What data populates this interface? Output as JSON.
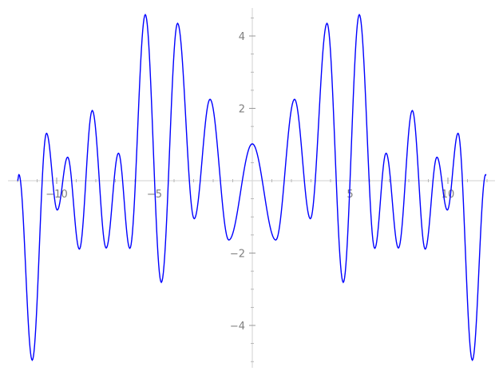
{
  "chart_data": {
    "type": "line",
    "title": "",
    "xlabel": "",
    "ylabel": "",
    "xlim": [
      -12,
      12
    ],
    "ylim": [
      -5.13,
      4.77
    ],
    "grid": false,
    "line_color": "#0000ff",
    "axis_color": "#d9d9d9",
    "tick_label_color": "#7f7f7f",
    "x_ticks": [
      {
        "value": -10,
        "label": "−10"
      },
      {
        "value": -5,
        "label": "−5"
      },
      {
        "value": 5,
        "label": "5"
      },
      {
        "value": 10,
        "label": "10"
      }
    ],
    "y_ticks": [
      {
        "value": -4,
        "label": "−4"
      },
      {
        "value": -2,
        "label": "−2"
      },
      {
        "value": 2,
        "label": "2"
      },
      {
        "value": 4,
        "label": "4"
      }
    ],
    "x_minor_step": 1,
    "y_minor_step": 0.5,
    "series": [
      {
        "points": [
          [
            -12.0,
            0.0
          ],
          [
            -11.93,
            0.17
          ],
          [
            -11.25,
            -4.96
          ],
          [
            -10.52,
            1.31
          ],
          [
            -9.97,
            -0.81
          ],
          [
            -9.44,
            0.65
          ],
          [
            -8.84,
            -1.89
          ],
          [
            -8.18,
            1.94
          ],
          [
            -7.47,
            -1.86
          ],
          [
            -6.84,
            0.76
          ],
          [
            -6.26,
            -1.87
          ],
          [
            -5.47,
            4.59
          ],
          [
            -4.65,
            -2.81
          ],
          [
            -3.82,
            4.35
          ],
          [
            -2.97,
            -1.05
          ],
          [
            -2.16,
            2.25
          ],
          [
            -1.2,
            -1.64
          ],
          [
            0.0,
            1.02
          ],
          [
            1.2,
            -1.64
          ],
          [
            2.16,
            2.25
          ],
          [
            2.97,
            -1.05
          ],
          [
            3.82,
            4.35
          ],
          [
            4.65,
            -2.81
          ],
          [
            5.47,
            4.59
          ],
          [
            6.26,
            -1.87
          ],
          [
            6.84,
            0.76
          ],
          [
            7.47,
            -1.86
          ],
          [
            8.18,
            1.94
          ],
          [
            8.84,
            -1.89
          ],
          [
            9.44,
            0.65
          ],
          [
            9.97,
            -0.81
          ],
          [
            10.52,
            1.31
          ],
          [
            11.25,
            -4.96
          ],
          [
            11.93,
            0.17
          ],
          [
            11.95,
            0.15
          ]
        ]
      }
    ]
  }
}
